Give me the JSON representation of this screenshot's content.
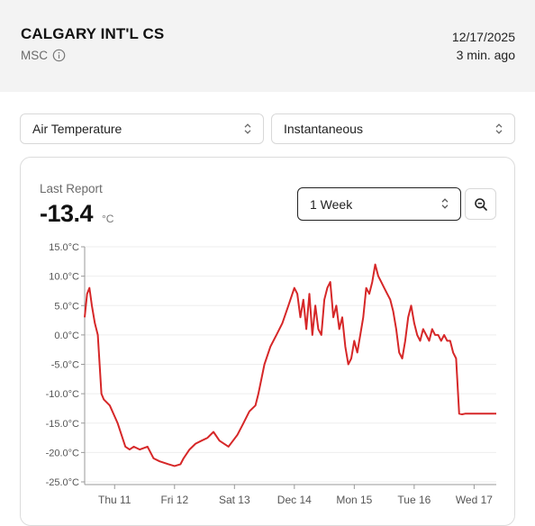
{
  "header": {
    "station_name": "CALGARY INT'L CS",
    "network": "MSC",
    "date": "12/17/2025",
    "updated_ago": "3 min. ago"
  },
  "selectors": {
    "variable": "Air Temperature",
    "aggregation": "Instantaneous",
    "time_range": "1 Week"
  },
  "last_report": {
    "label": "Last Report",
    "value": "-13.4",
    "unit": "°C"
  },
  "icons": {
    "info": "info-icon",
    "chevron": "chevron-up-down-icon",
    "zoom": "zoom-out-icon"
  },
  "colors": {
    "series": "#d62728",
    "header_bg": "#f3f3f3"
  },
  "chart_data": {
    "type": "line",
    "title": "",
    "xlabel": "",
    "ylabel": "",
    "ylim": [
      -25,
      15
    ],
    "yticks": [
      "15.0°C",
      "10.0°C",
      "5.0°C",
      "0.0°C",
      "-5.0°C",
      "-10.0°C",
      "-15.0°C",
      "-20.0°C",
      "-25.0°C"
    ],
    "ytick_values": [
      15,
      10,
      5,
      0,
      -5,
      -10,
      -15,
      -20,
      -25
    ],
    "xlim": [
      0,
      6.87
    ],
    "xticks": [
      "Thu 11",
      "Fri 12",
      "Sat 13",
      "Dec 14",
      "Mon 15",
      "Tue 16",
      "Wed 17"
    ],
    "xtick_values": [
      0.5,
      1.5,
      2.5,
      3.5,
      4.5,
      5.5,
      6.5
    ],
    "grid": true,
    "series": [
      {
        "color": "#d62728",
        "x": [
          0,
          0.04,
          0.08,
          0.12,
          0.17,
          0.22,
          0.28,
          0.32,
          0.42,
          0.55,
          0.68,
          0.75,
          0.82,
          0.92,
          1.05,
          1.15,
          1.25,
          1.4,
          1.5,
          1.6,
          1.65,
          1.75,
          1.85,
          1.95,
          2.05,
          2.15,
          2.25,
          2.4,
          2.55,
          2.65,
          2.75,
          2.85,
          2.9,
          3.0,
          3.1,
          3.2,
          3.3,
          3.4,
          3.5,
          3.55,
          3.6,
          3.65,
          3.7,
          3.75,
          3.8,
          3.85,
          3.9,
          3.95,
          4.0,
          4.05,
          4.1,
          4.15,
          4.2,
          4.25,
          4.3,
          4.35,
          4.4,
          4.45,
          4.5,
          4.55,
          4.6,
          4.65,
          4.7,
          4.75,
          4.8,
          4.85,
          4.9,
          4.95,
          5.0,
          5.05,
          5.1,
          5.15,
          5.2,
          5.25,
          5.3,
          5.35,
          5.4,
          5.45,
          5.5,
          5.55,
          5.6,
          5.65,
          5.7,
          5.75,
          5.8,
          5.85,
          5.9,
          5.95,
          6.0,
          6.05,
          6.1,
          6.15,
          6.2,
          6.25,
          6.3,
          6.35,
          6.4,
          6.45,
          6.5,
          6.55,
          6.6,
          6.65,
          6.7,
          6.75,
          6.8,
          6.85,
          6.87
        ],
        "values": [
          3,
          7,
          8,
          5,
          2,
          0,
          -10,
          -11,
          -12,
          -15,
          -19,
          -19.5,
          -19,
          -19.5,
          -19,
          -21,
          -21.5,
          -22,
          -22.3,
          -22,
          -21,
          -19.5,
          -18.5,
          -18,
          -17.5,
          -16.5,
          -18,
          -19,
          -17,
          -15,
          -13,
          -12,
          -10,
          -5,
          -2,
          0,
          2,
          5,
          8,
          7,
          3,
          6,
          1,
          7,
          0,
          5,
          1,
          0,
          6,
          8,
          9,
          3,
          5,
          1,
          3,
          -2,
          -5,
          -4,
          -1,
          -3,
          0,
          3,
          8,
          7,
          9,
          12,
          10,
          9,
          8,
          7,
          6,
          4,
          1,
          -3,
          -4,
          -1,
          3,
          5,
          2,
          0,
          -1,
          1,
          0,
          -1,
          1,
          0,
          0,
          -1,
          0,
          -1,
          -1,
          -3,
          -4,
          -13.4,
          -13.5,
          -13.4,
          -13.4,
          -13.4,
          -13.4,
          -13.4,
          -13.4,
          -13.4,
          -13.4,
          -13.4,
          -13.4,
          -13.4,
          -13.4
        ]
      }
    ]
  }
}
